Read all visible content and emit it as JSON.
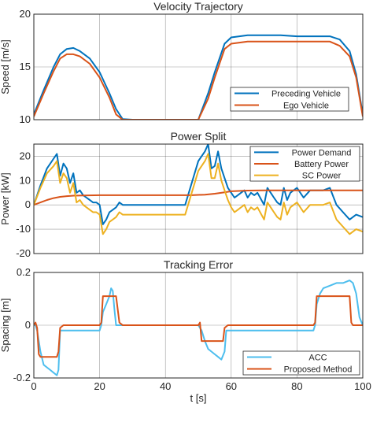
{
  "chart_data": [
    {
      "type": "line",
      "title": "Velocity Trajectory",
      "xlabel": "",
      "ylabel": "Speed [m/s]",
      "xlim": [
        0,
        100
      ],
      "ylim": [
        10,
        20
      ],
      "xticks": [
        0,
        20,
        40,
        60,
        80,
        100
      ],
      "yticks": [
        10,
        15,
        20
      ],
      "xtick_labels_shown": false,
      "grid": true,
      "legend": "bottom-right",
      "series": [
        {
          "name": "Preceding Vehicle",
          "color": "#0072BD",
          "x": [
            0,
            3,
            6,
            8,
            10,
            12,
            14,
            17,
            20,
            23,
            25,
            27,
            30,
            35,
            40,
            45,
            50,
            53,
            55,
            58,
            60,
            65,
            70,
            75,
            80,
            85,
            90,
            93,
            96,
            98,
            100
          ],
          "y": [
            10.5,
            12.8,
            15.0,
            16.2,
            16.7,
            16.8,
            16.5,
            15.8,
            14.5,
            12.5,
            11.0,
            10.05,
            10.0,
            10.0,
            10.0,
            10.0,
            10.0,
            12.5,
            14.5,
            17.2,
            17.8,
            18.0,
            18.0,
            18.0,
            17.9,
            17.9,
            17.9,
            17.6,
            16.5,
            14.3,
            10.5
          ]
        },
        {
          "name": "Ego Vehicle",
          "color": "#D95319",
          "x": [
            0,
            3,
            6,
            8,
            10,
            12,
            14,
            17,
            20,
            23,
            25,
            27,
            30,
            35,
            40,
            45,
            50,
            53,
            55,
            58,
            60,
            65,
            70,
            75,
            80,
            85,
            90,
            93,
            96,
            98,
            100
          ],
          "y": [
            10.3,
            12.5,
            14.6,
            15.8,
            16.2,
            16.2,
            16.0,
            15.3,
            14.0,
            12.1,
            10.5,
            10.0,
            10.0,
            10.0,
            10.0,
            10.0,
            10.0,
            12.0,
            14.0,
            16.7,
            17.2,
            17.4,
            17.4,
            17.4,
            17.4,
            17.4,
            17.4,
            17.0,
            16.0,
            14.0,
            10.3
          ]
        }
      ]
    },
    {
      "type": "line",
      "title": "Power Split",
      "xlabel": "",
      "ylabel": "Power [kW]",
      "xlim": [
        0,
        100
      ],
      "ylim": [
        -20,
        25
      ],
      "xticks": [
        0,
        20,
        40,
        60,
        80,
        100
      ],
      "yticks": [
        -20,
        -10,
        0,
        10,
        20
      ],
      "xtick_labels_shown": false,
      "grid": true,
      "legend": "top-right",
      "series": [
        {
          "name": "Power Demand",
          "color": "#0072BD",
          "x": [
            0,
            2,
            4,
            6,
            7,
            8,
            9,
            10,
            11,
            12,
            13,
            14,
            15,
            16,
            17,
            18,
            19,
            20,
            21,
            22,
            23,
            24,
            25,
            26,
            27,
            28,
            30,
            35,
            40,
            45,
            46,
            50,
            51,
            52,
            53,
            54,
            55,
            56,
            57,
            58,
            59,
            60,
            61,
            62,
            63,
            64,
            65,
            66,
            67,
            68,
            70,
            71,
            72,
            73,
            74,
            75,
            76,
            77,
            78,
            80,
            82,
            84,
            86,
            88,
            90,
            92,
            94,
            96,
            98,
            100
          ],
          "y": [
            0,
            8,
            15,
            19,
            21,
            12,
            17,
            15,
            9,
            13,
            5,
            6,
            4,
            3,
            2,
            1,
            1,
            0,
            -8,
            -6,
            -3,
            -2,
            -1,
            1,
            0,
            0,
            0,
            0,
            0,
            0,
            0,
            18,
            20,
            22,
            25,
            15,
            16,
            22,
            15,
            11,
            7,
            5,
            3,
            4,
            5,
            6,
            3,
            5,
            4,
            5,
            0,
            7,
            5,
            3,
            1,
            0,
            7,
            2,
            5,
            7,
            3,
            6,
            6,
            6,
            7,
            0,
            -3,
            -6,
            -4,
            -5
          ]
        },
        {
          "name": "Battery Power",
          "color": "#D95319",
          "x": [
            0,
            2,
            4,
            6,
            8,
            10,
            12,
            15,
            20,
            25,
            30,
            40,
            48,
            52,
            55,
            58,
            60,
            65,
            70,
            80,
            90,
            100
          ],
          "y": [
            0,
            1.0,
            2.0,
            2.8,
            3.3,
            3.6,
            3.8,
            3.9,
            4.0,
            4.0,
            4.0,
            4.0,
            4.0,
            4.2,
            4.6,
            5.2,
            5.6,
            5.9,
            6.0,
            6.0,
            6.0,
            6.0
          ]
        },
        {
          "name": "SC Power",
          "color": "#EDB120",
          "x": [
            0,
            2,
            4,
            6,
            7,
            8,
            9,
            10,
            11,
            12,
            13,
            14,
            15,
            16,
            17,
            18,
            19,
            20,
            21,
            22,
            23,
            24,
            25,
            26,
            27,
            28,
            30,
            35,
            40,
            45,
            46,
            50,
            51,
            52,
            53,
            54,
            55,
            56,
            57,
            58,
            59,
            60,
            61,
            62,
            63,
            64,
            65,
            66,
            67,
            68,
            70,
            71,
            72,
            73,
            74,
            75,
            76,
            77,
            78,
            80,
            82,
            84,
            86,
            88,
            90,
            92,
            94,
            96,
            98,
            100
          ],
          "y": [
            0,
            7,
            13,
            16,
            18,
            9,
            13,
            11,
            5,
            9,
            1,
            2,
            0,
            -1,
            -2,
            -3,
            -3,
            -4,
            -12,
            -10,
            -7,
            -6,
            -5,
            -3,
            -4,
            -4,
            -4,
            -4,
            -4,
            -4,
            -4,
            14,
            16,
            18,
            21,
            11,
            11,
            17,
            10,
            6,
            2,
            -1,
            -3,
            -2,
            -1,
            0,
            -3,
            -1,
            -2,
            -1,
            -6,
            1,
            -1,
            -3,
            -5,
            -6,
            1,
            -4,
            -1,
            1,
            -3,
            0,
            0,
            0,
            1,
            -6,
            -9,
            -12,
            -10,
            -11
          ]
        }
      ]
    },
    {
      "type": "line",
      "title": "Tracking Error",
      "xlabel": "t [s]",
      "ylabel": "Spacing [m]",
      "xlim": [
        0,
        100
      ],
      "ylim": [
        -0.2,
        0.2
      ],
      "xticks": [
        0,
        20,
        40,
        60,
        80,
        100
      ],
      "yticks": [
        -0.2,
        0,
        0.2
      ],
      "xtick_labels": [
        "0",
        "20",
        "40",
        "60",
        "80",
        "100"
      ],
      "ytick_labels": [
        "-0.2",
        "0",
        "0.2"
      ],
      "grid": true,
      "legend": "bottom-right",
      "series": [
        {
          "name": "ACC",
          "color": "#4DBEEE",
          "x": [
            0,
            0.5,
            1,
            2,
            3,
            4,
            5,
            6,
            7,
            7.5,
            8,
            8.5,
            9,
            10,
            15,
            20,
            20.5,
            21,
            22,
            23,
            23.5,
            24,
            24.5,
            25,
            26,
            27,
            30,
            40,
            50,
            51,
            52,
            53,
            54,
            55,
            56,
            57,
            58,
            58.5,
            59,
            60,
            65,
            70,
            80,
            85,
            85.5,
            86,
            87,
            88,
            90,
            92,
            94,
            96,
            97,
            98,
            99,
            100
          ],
          "y": [
            0,
            0.0,
            -0.02,
            -0.1,
            -0.15,
            -0.16,
            -0.17,
            -0.18,
            -0.19,
            -0.17,
            -0.02,
            -0.02,
            -0.02,
            -0.02,
            -0.02,
            -0.02,
            0.0,
            0.05,
            0.08,
            0.11,
            0.14,
            0.13,
            0.06,
            0.0,
            0.0,
            0.0,
            0.0,
            0.0,
            0.0,
            -0.02,
            -0.06,
            -0.09,
            -0.1,
            -0.11,
            -0.12,
            -0.13,
            -0.1,
            -0.02,
            -0.02,
            -0.02,
            -0.02,
            -0.02,
            -0.02,
            -0.02,
            0.0,
            0.08,
            0.12,
            0.14,
            0.15,
            0.16,
            0.16,
            0.17,
            0.16,
            0.12,
            0.03,
            0.0
          ]
        },
        {
          "name": "Proposed Method",
          "color": "#D95319",
          "x": [
            0,
            0.5,
            1,
            1.5,
            2,
            7,
            7.5,
            8,
            9,
            20,
            20.5,
            21,
            25,
            26,
            27,
            50,
            50.5,
            51,
            57.5,
            58,
            59,
            85,
            85.5,
            86,
            96,
            96.5,
            97,
            100
          ],
          "y": [
            0,
            0.01,
            -0.01,
            -0.11,
            -0.12,
            -0.12,
            -0.1,
            -0.01,
            0,
            0,
            0.01,
            0.11,
            0.11,
            0.01,
            0,
            0,
            0.01,
            -0.06,
            -0.06,
            -0.01,
            0,
            0,
            0.01,
            0.11,
            0.11,
            0.01,
            0,
            0
          ]
        }
      ]
    }
  ]
}
